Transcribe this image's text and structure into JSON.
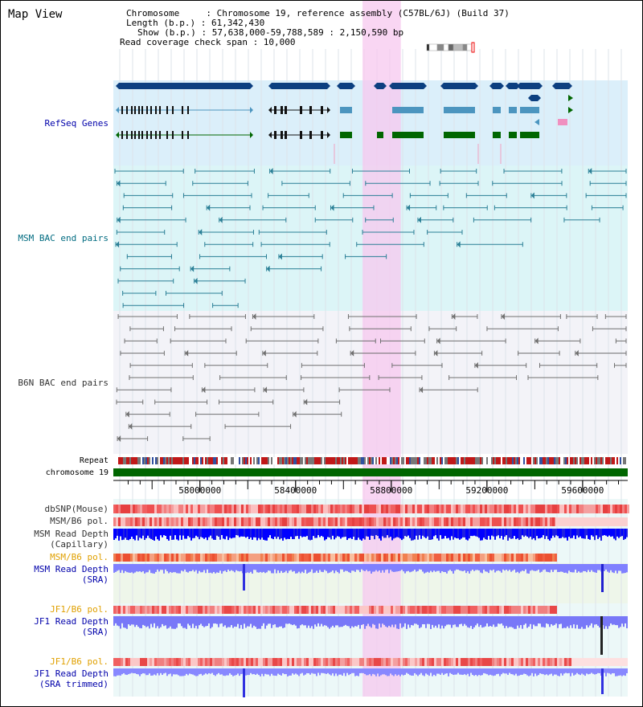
{
  "title": "Map View",
  "info": {
    "chromosome": "Chromosome     : Chromosome 19, reference assembly (C57BL/6J) (Build 37)",
    "length": "Length (b.p.) : 61,342,430",
    "show": "Show (b.p.) : 57,638,000-59,788,589 : 2,150,590 bp",
    "coverage": "Read coverage check span : 10,000"
  },
  "tracks": {
    "refseq": "RefSeq Genes",
    "msm_bac": "MSM BAC end pairs",
    "b6n_bac": "B6N BAC end pairs",
    "repeat": "Repeat",
    "chrom": "chromosome 19",
    "dbsnp": "dbSNP(Mouse)",
    "msm_b6_pol": "MSM/B6 pol.",
    "msm_cap_1": "MSM Read Depth",
    "msm_cap_2": "(Capillary)",
    "msm_b6_pol2": "MSM/B6 pol.",
    "msm_sra_1": "MSM Read Depth",
    "msm_sra_2": "(SRA)",
    "jf1_pol": "JF1/B6 pol.",
    "jf1_sra_1": "JF1 Read Depth",
    "jf1_sra_2": "(SRA)",
    "jf1_pol2": "JF1/B6 pol.",
    "jf1_trim_1": "JF1 Read Depth",
    "jf1_trim_2": "(SRA trimmed)"
  },
  "axis": {
    "ticks": [
      {
        "value": 58000000,
        "label": "58000000"
      },
      {
        "value": 58400000,
        "label": "58400000"
      },
      {
        "value": 58800000,
        "label": "58800000"
      },
      {
        "value": 59200000,
        "label": "59200000"
      },
      {
        "value": 59600000,
        "label": "59600000"
      }
    ],
    "start": 57638000,
    "end": 59788589
  },
  "highlight": {
    "start": 58680000,
    "end": 58840000
  },
  "colors": {
    "refseq_bg": "#dbeffa",
    "msm_bg": "#dcf5f7",
    "b6n_bg": "#f3f3f8",
    "highlight": "#f7c8ef",
    "gene_dark": "#0c3f80",
    "gene_mid": "#4c95bf",
    "gene_green": "#006600",
    "msm_line": "#2a7f96",
    "b6n_line": "#707070",
    "chrom": "#006600",
    "label_blue": "#0000aa",
    "label_teal": "#006b80",
    "label_orange": "#e0a000",
    "label_dark": "#333333"
  }
}
